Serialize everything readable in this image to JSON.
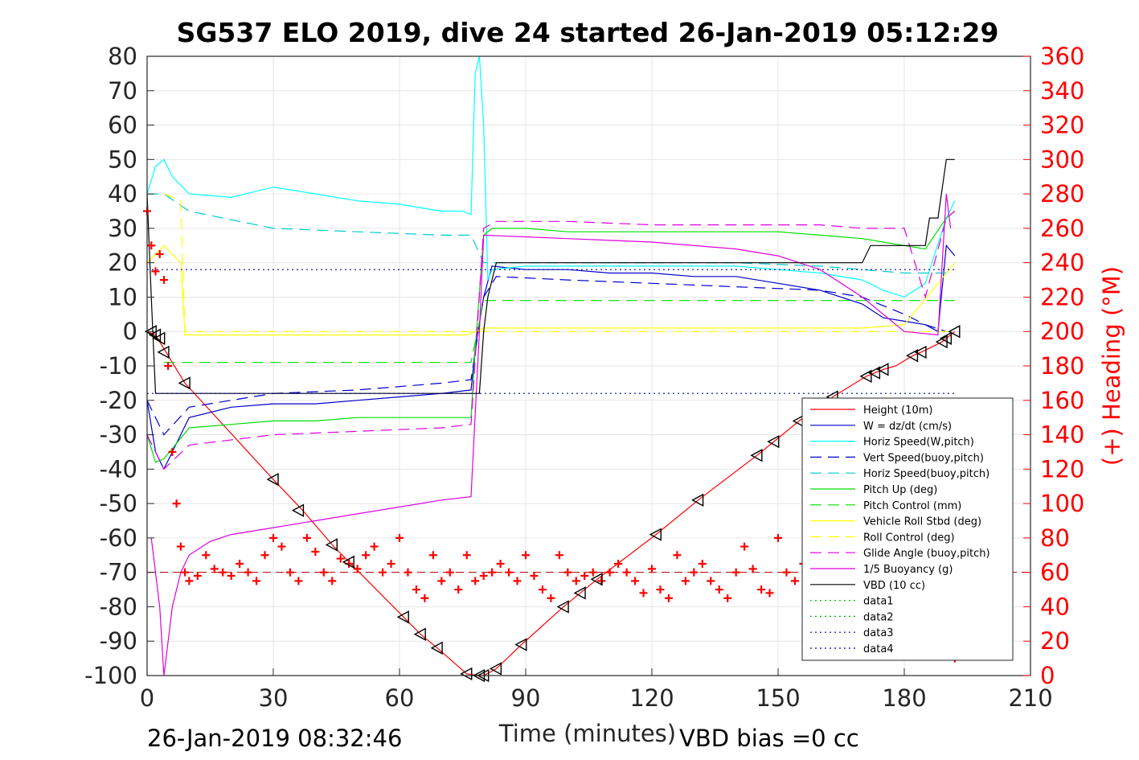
{
  "chart_data": {
    "type": "line",
    "title": "SG537 ELO 2019, dive 24 started 26-Jan-2019 05:12:29",
    "xlabel": "Time (minutes)",
    "ylabel_right": "(+) Heading (°M)",
    "footer_left": "26-Jan-2019 08:32:46",
    "footer_right": "VBD bias =0 cc",
    "xlim": [
      0,
      210
    ],
    "ylim": [
      -100,
      80
    ],
    "ylim_right": [
      0,
      360
    ],
    "x_ticks": [
      "0",
      "30",
      "60",
      "90",
      "120",
      "150",
      "180",
      "210"
    ],
    "y_ticks": [
      "80",
      "70",
      "60",
      "50",
      "40",
      "30",
      "20",
      "10",
      "0",
      "-10",
      "-20",
      "-30",
      "-40",
      "-50",
      "-60",
      "-70",
      "-80",
      "-90",
      "-100"
    ],
    "y_ticks_right": [
      "360",
      "340",
      "320",
      "300",
      "280",
      "260",
      "240",
      "220",
      "200",
      "180",
      "160",
      "140",
      "120",
      "100",
      "80",
      "60",
      "40",
      "20",
      "0"
    ],
    "grid": true,
    "legend_position": "lower-right",
    "right_axis_color": "#ff0000",
    "series": [
      {
        "name": "Height (10m)",
        "color": "#ff0000",
        "style": "solid",
        "x": [
          0,
          2,
          9,
          30,
          37,
          44,
          48,
          61,
          65,
          69,
          76,
          79,
          80,
          83,
          89,
          99,
          103,
          107,
          121,
          131,
          145,
          149,
          155,
          163,
          171,
          173,
          175,
          178,
          182,
          184,
          189,
          190,
          192
        ],
        "y": [
          0,
          -1,
          -15,
          -43,
          -52,
          -62,
          -67,
          -83,
          -88,
          -92,
          -99.5,
          -100,
          -100,
          -98,
          -91,
          -80,
          -76,
          -72,
          -59,
          -49,
          -36,
          -32,
          -26,
          -19,
          -13,
          -12,
          -11,
          -10,
          -7,
          -6,
          -3,
          -2,
          0
        ]
      },
      {
        "name": "W = dz/dt (cm/s)",
        "color": "#0000cc",
        "style": "solid",
        "x": [
          0,
          2,
          4,
          6,
          10,
          20,
          30,
          40,
          50,
          60,
          70,
          77,
          78,
          80,
          82,
          90,
          100,
          110,
          120,
          130,
          140,
          150,
          160,
          170,
          175,
          180,
          185,
          188,
          190,
          192
        ],
        "y": [
          -20,
          -35,
          -40,
          -35,
          -25,
          -22,
          -21,
          -21,
          -20,
          -19,
          -18,
          -17,
          -5,
          10,
          19,
          18,
          18,
          17,
          17,
          16,
          16,
          14,
          12,
          8,
          4,
          3,
          2,
          0,
          25,
          22
        ]
      },
      {
        "name": "Horiz Speed(W,pitch)",
        "color": "#00ffff",
        "style": "solid",
        "x": [
          0,
          2,
          4,
          6,
          10,
          20,
          30,
          40,
          50,
          60,
          70,
          75,
          77,
          78,
          79,
          80,
          81,
          82,
          90,
          100,
          110,
          120,
          130,
          140,
          150,
          160,
          170,
          175,
          180,
          185,
          190,
          192
        ],
        "y": [
          40,
          48,
          50,
          45,
          40,
          39,
          42,
          40,
          38,
          37,
          35,
          35,
          34,
          75,
          80,
          60,
          15,
          18,
          19,
          19,
          19,
          19,
          19,
          19,
          18,
          17,
          15,
          12,
          10,
          14,
          33,
          38
        ]
      },
      {
        "name": "Vert Speed(buoy,pitch)",
        "color": "#0000cc",
        "style": "dashed",
        "x": [
          0,
          4,
          10,
          30,
          50,
          70,
          77,
          80,
          83,
          100,
          120,
          140,
          160,
          170,
          180,
          185,
          190
        ],
        "y": [
          -20,
          -30,
          -22,
          -18,
          -17,
          -15,
          -14,
          10,
          16,
          15,
          14,
          13,
          12,
          10,
          5,
          2,
          0
        ]
      },
      {
        "name": "Horiz Speed(buoy,pitch)",
        "color": "#00cccc",
        "style": "dashed",
        "x": [
          0,
          4,
          10,
          30,
          50,
          70,
          77,
          80,
          83,
          100,
          120,
          140,
          160,
          170,
          180,
          190
        ],
        "y": [
          40,
          40,
          35,
          30,
          29,
          28,
          28,
          20,
          20,
          20,
          20,
          20,
          19,
          18,
          17,
          17
        ]
      },
      {
        "name": "Pitch Up (deg)",
        "color": "#00dd00",
        "style": "solid",
        "x": [
          0,
          2,
          4,
          6,
          10,
          20,
          30,
          40,
          50,
          60,
          70,
          77,
          78,
          80,
          82,
          90,
          100,
          110,
          120,
          130,
          140,
          150,
          160,
          170,
          175,
          180,
          185,
          190,
          192
        ],
        "y": [
          -30,
          -38,
          -37,
          -34,
          -28,
          -27,
          -26,
          -26,
          -25,
          -25,
          -25,
          -25,
          -5,
          28,
          30,
          30,
          29,
          29,
          29,
          29,
          29,
          29,
          28,
          27,
          26,
          25,
          24,
          33,
          35
        ]
      },
      {
        "name": "Pitch Control (mm)",
        "color": "#00dd00",
        "style": "dashed",
        "x": [
          4,
          30,
          60,
          77,
          80,
          90,
          120,
          150,
          170,
          192
        ],
        "y": [
          -9,
          -9,
          -9,
          -9,
          9,
          9,
          9,
          9,
          9,
          9
        ]
      },
      {
        "name": "Vehicle Roll Stbd (deg)",
        "color": "#ffff00",
        "style": "solid",
        "x": [
          0,
          4,
          8,
          9,
          20,
          40,
          60,
          76,
          80,
          100,
          120,
          140,
          160,
          170,
          180,
          192
        ],
        "y": [
          20,
          25,
          20,
          -1,
          -1,
          -1,
          -1,
          -1,
          1,
          1,
          1,
          1,
          1,
          1,
          2,
          20
        ]
      },
      {
        "name": "Roll Control (deg)",
        "color": "#ffff00",
        "style": "dashed",
        "x": [
          4,
          8,
          9,
          30,
          60,
          76,
          80,
          120,
          160,
          192
        ],
        "y": [
          40,
          38,
          0,
          0,
          0,
          0,
          0,
          0,
          0,
          0
        ]
      },
      {
        "name": "Glide Angle (buoy,pitch)",
        "color": "#dd00dd",
        "style": "dashed",
        "x": [
          0,
          4,
          10,
          30,
          50,
          70,
          77,
          80,
          83,
          100,
          120,
          140,
          160,
          170,
          180,
          185,
          190,
          192
        ],
        "y": [
          -30,
          -40,
          -33,
          -30,
          -29,
          -28,
          -27,
          30,
          32,
          32,
          31,
          31,
          31,
          30,
          30,
          10,
          33,
          35
        ]
      },
      {
        "name": "1/5 Buoyancy (g)",
        "color": "#dd00dd",
        "style": "solid",
        "x": [
          1,
          3,
          4,
          5,
          6,
          8,
          10,
          15,
          20,
          30,
          40,
          50,
          60,
          70,
          77,
          79,
          80,
          100,
          120,
          140,
          150,
          160,
          170,
          180,
          188,
          190,
          191
        ],
        "y": [
          -60,
          -80,
          -100,
          -90,
          -80,
          -70,
          -65,
          -61,
          -59,
          -57,
          -55,
          -53,
          -51,
          -49,
          -48,
          0,
          28,
          27,
          26,
          24,
          22,
          18,
          10,
          0,
          -1,
          40,
          30
        ]
      },
      {
        "name": "VBD (10 cc)",
        "color": "#000000",
        "style": "solid",
        "x": [
          0,
          1,
          2,
          3,
          79,
          80,
          81,
          82,
          83,
          100,
          120,
          150,
          170,
          172,
          180,
          185,
          186,
          188,
          190,
          192
        ],
        "y": [
          40,
          10,
          -18,
          -18,
          -18,
          0,
          10,
          15,
          20,
          20,
          20,
          20,
          20,
          25,
          25,
          25,
          33,
          33,
          50,
          50
        ]
      },
      {
        "name": "data1",
        "color": "#00cc00",
        "style": "dotted",
        "x": [],
        "y": []
      },
      {
        "name": "data2",
        "color": "#00aa00",
        "style": "dotted",
        "x": [],
        "y": []
      },
      {
        "name": "data3",
        "color": "#0000aa",
        "style": "dotted",
        "x": [
          0,
          192
        ],
        "y": [
          18,
          18
        ]
      },
      {
        "name": "data4",
        "color": "#0000aa",
        "style": "dotted",
        "x": [
          0,
          192
        ],
        "y": [
          -18,
          -18
        ]
      }
    ],
    "reference_lines": [
      {
        "color": "#aa0000",
        "style": "dashed",
        "y": -70
      }
    ],
    "heading_series": {
      "name": "Heading",
      "color": "#ff0000",
      "marker": "+",
      "axis": "right",
      "x": [
        0,
        1,
        2,
        3,
        4,
        5,
        6,
        7,
        8,
        9,
        10,
        12,
        14,
        16,
        18,
        20,
        22,
        24,
        26,
        28,
        30,
        32,
        34,
        36,
        38,
        40,
        42,
        44,
        46,
        48,
        50,
        52,
        54,
        56,
        58,
        60,
        62,
        64,
        66,
        68,
        70,
        72,
        74,
        76,
        78,
        80,
        82,
        84,
        86,
        88,
        90,
        92,
        94,
        96,
        98,
        100,
        102,
        104,
        106,
        108,
        110,
        112,
        114,
        116,
        118,
        120,
        122,
        124,
        126,
        128,
        130,
        132,
        134,
        136,
        138,
        140,
        142,
        144,
        146,
        148,
        150,
        152,
        154,
        156,
        158,
        160,
        162,
        164,
        166,
        168,
        170,
        172,
        174,
        176,
        178,
        180,
        182,
        184,
        186,
        188,
        190,
        192
      ],
      "y": [
        270,
        250,
        235,
        245,
        230,
        180,
        130,
        100,
        75,
        60,
        55,
        58,
        70,
        62,
        60,
        58,
        65,
        60,
        55,
        70,
        80,
        75,
        60,
        55,
        80,
        72,
        60,
        55,
        68,
        65,
        62,
        70,
        75,
        60,
        65,
        80,
        60,
        50,
        45,
        70,
        55,
        60,
        50,
        70,
        55,
        58,
        60,
        65,
        60,
        55,
        70,
        58,
        50,
        45,
        70,
        60,
        55,
        58,
        60,
        55,
        60,
        65,
        60,
        55,
        48,
        62,
        50,
        45,
        70,
        55,
        60,
        65,
        55,
        50,
        45,
        60,
        75,
        62,
        50,
        48,
        80,
        60,
        55,
        65,
        70,
        85,
        75,
        80,
        95,
        100,
        90,
        100,
        110,
        105,
        115,
        100,
        120,
        110,
        95,
        80,
        60,
        10
      ]
    },
    "dive_markers": {
      "marker": "triangle-left",
      "color": "#000000",
      "x": [
        1,
        2,
        3,
        4,
        9,
        30,
        36,
        44,
        48,
        61,
        65,
        69,
        76,
        79,
        80,
        83,
        89,
        99,
        103,
        107,
        121,
        131,
        145,
        149,
        155,
        163,
        171,
        173,
        175,
        182,
        184,
        189,
        190,
        192
      ],
      "y": [
        0,
        -1,
        -2,
        -6,
        -15,
        -43,
        -52,
        -62,
        -67,
        -83,
        -88,
        -92,
        -99.5,
        -100,
        -100,
        -98,
        -91,
        -80,
        -76,
        -72,
        -59,
        -49,
        -36,
        -32,
        -26,
        -19,
        -13,
        -12,
        -11,
        -7,
        -6,
        -3,
        -2,
        0
      ]
    }
  }
}
